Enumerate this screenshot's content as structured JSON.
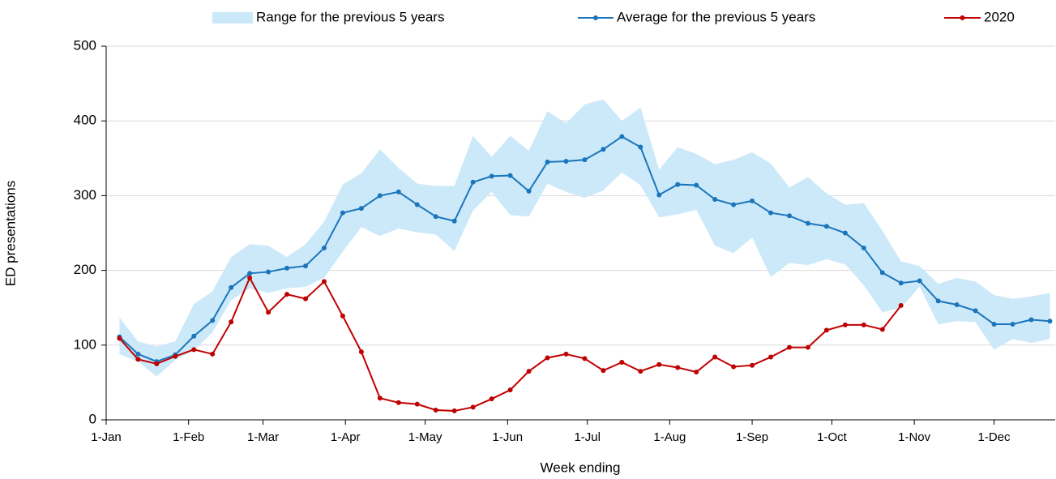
{
  "chart_data": {
    "type": "line",
    "x_label": "Week ending",
    "y_label": "ED presentations",
    "x": [
      5,
      12,
      19,
      26,
      33,
      40,
      47,
      54,
      61,
      68,
      75,
      82,
      89,
      96,
      103,
      110,
      117,
      124,
      131,
      138,
      145,
      152,
      159,
      166,
      173,
      180,
      187,
      194,
      201,
      208,
      215,
      222,
      229,
      236,
      243,
      250,
      257,
      264,
      271,
      278,
      285,
      292,
      299,
      306,
      313,
      320,
      327,
      334,
      341,
      348,
      355
    ],
    "xlim": [
      0,
      357
    ],
    "xticks": [
      {
        "value": 0,
        "label": "1-Jan"
      },
      {
        "value": 31,
        "label": "1-Feb"
      },
      {
        "value": 59,
        "label": "1-Mar"
      },
      {
        "value": 90,
        "label": "1-Apr"
      },
      {
        "value": 120,
        "label": "1-May"
      },
      {
        "value": 151,
        "label": "1-Jun"
      },
      {
        "value": 181,
        "label": "1-Jul"
      },
      {
        "value": 212,
        "label": "1-Aug"
      },
      {
        "value": 243,
        "label": "1-Sep"
      },
      {
        "value": 273,
        "label": "1-Oct"
      },
      {
        "value": 304,
        "label": "1-Nov"
      },
      {
        "value": 334,
        "label": "1-Dec"
      }
    ],
    "ylim": [
      0,
      500
    ],
    "yticks": [
      0,
      100,
      200,
      300,
      400,
      500
    ],
    "grid": true,
    "series": [
      {
        "name": "Range for the previous 5 years",
        "kind": "band",
        "color": "#cce9f9",
        "upper": [
          137,
          105,
          98,
          105,
          155,
          172,
          218,
          235,
          233,
          218,
          235,
          265,
          315,
          330,
          362,
          337,
          316,
          313,
          313,
          380,
          352,
          380,
          360,
          413,
          397,
          422,
          429,
          400,
          418,
          335,
          365,
          356,
          342,
          348,
          358,
          343,
          311,
          325,
          303,
          288,
          290,
          253,
          212,
          206,
          182,
          190,
          185,
          167,
          162,
          165,
          170
        ],
        "lower": [
          88,
          78,
          58,
          80,
          93,
          117,
          160,
          176,
          170,
          176,
          178,
          190,
          225,
          258,
          246,
          256,
          251,
          248,
          226,
          280,
          305,
          274,
          272,
          316,
          305,
          297,
          307,
          331,
          314,
          271,
          275,
          281,
          233,
          223,
          244,
          191,
          210,
          207,
          215,
          208,
          180,
          144,
          150,
          178,
          128,
          132,
          131,
          94,
          108,
          103,
          108
        ]
      },
      {
        "name": "Average for the previous 5 years",
        "kind": "line",
        "color": "#1b75bb",
        "values": [
          111,
          88,
          78,
          87,
          112,
          133,
          177,
          196,
          198,
          203,
          206,
          230,
          277,
          283,
          300,
          305,
          288,
          272,
          266,
          318,
          326,
          327,
          306,
          345,
          346,
          348,
          362,
          379,
          365,
          301,
          315,
          314,
          295,
          288,
          293,
          277,
          273,
          263,
          259,
          250,
          230,
          197,
          183,
          186,
          159,
          154,
          146,
          128,
          128,
          134,
          132
        ]
      },
      {
        "name": "2020",
        "kind": "line",
        "color": "#c00000",
        "values": [
          109,
          81,
          75,
          85,
          94,
          88,
          131,
          190,
          144,
          168,
          162,
          185,
          139,
          91,
          29,
          23,
          21,
          13,
          12,
          17,
          28,
          40,
          65,
          83,
          88,
          82,
          66,
          77,
          65,
          74,
          70,
          64,
          84,
          71,
          73,
          84,
          97,
          97,
          120,
          127,
          127,
          121,
          153,
          null,
          null,
          null,
          null,
          null,
          null,
          null,
          null
        ]
      }
    ]
  }
}
